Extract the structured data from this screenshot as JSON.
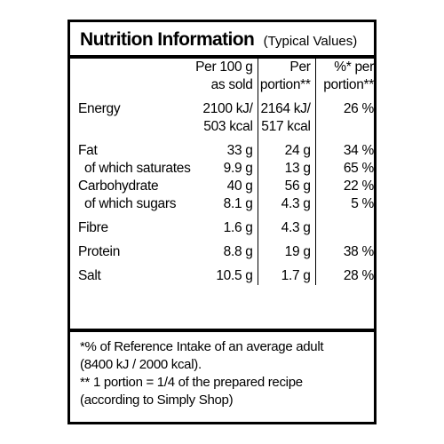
{
  "panel": {
    "title": "Nutrition Information",
    "subtitle": "(Typical Values)"
  },
  "headers": {
    "per100_line1": "Per 100 g",
    "per100_line2": "as sold",
    "portion_line1": "Per",
    "portion_line2": "portion**",
    "ri_line1": "%* per",
    "ri_line2": "portion**"
  },
  "rows": [
    {
      "label": "Energy",
      "per100": "2100 kJ/",
      "portion": "2164 kJ/",
      "ri": "26 %"
    },
    {
      "label": "",
      "per100": "503 kcal",
      "portion": "517 kcal",
      "ri": ""
    },
    {
      "label": "Fat",
      "per100": "33 g",
      "portion": "24 g",
      "ri": "34 %"
    },
    {
      "label": "of which saturates",
      "per100": "9.9 g",
      "portion": "13 g",
      "ri": "65 %"
    },
    {
      "label": "Carbohydrate",
      "per100": "40 g",
      "portion": "56 g",
      "ri": "22 %"
    },
    {
      "label": "of which sugars",
      "per100": "8.1 g",
      "portion": "4.3 g",
      "ri": "5 %"
    },
    {
      "label": "Fibre",
      "per100": "1.6 g",
      "portion": "4.3 g",
      "ri": ""
    },
    {
      "label": "Protein",
      "per100": "8.8 g",
      "portion": "19 g",
      "ri": "38 %"
    },
    {
      "label": "Salt",
      "per100": "10.5 g",
      "portion": "1.7 g",
      "ri": "28 %"
    }
  ],
  "footnotes": {
    "line1": "*% of Reference Intake of an average adult",
    "line2": "(8400 kJ / 2000 kcal).",
    "line3": "** 1 portion = 1/4 of the prepared recipe",
    "line4": "(according to Simply Shop)"
  }
}
